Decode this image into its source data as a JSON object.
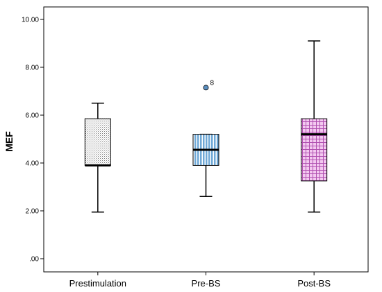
{
  "chart_data": {
    "type": "boxplot",
    "ylabel": "MEF",
    "xlabel": "",
    "title": "",
    "ylim": [
      0,
      10.5
    ],
    "yticks": [
      0,
      2,
      4,
      6,
      8,
      10
    ],
    "ytick_labels": [
      ".00",
      "2.00",
      "4.00",
      "6.00",
      "8.00",
      "10.00"
    ],
    "grid": false,
    "categories": [
      "Prestimulation",
      "Pre-BS",
      "Post-BS"
    ],
    "boxes": [
      {
        "category": "Prestimulation",
        "min": 1.95,
        "q1": 3.9,
        "median": 3.9,
        "q3": 5.85,
        "max": 6.5,
        "pattern": "dots",
        "fill": "#ffffff",
        "pattern_color": "#7a7a7a"
      },
      {
        "category": "Pre-BS",
        "min": 2.6,
        "q1": 3.9,
        "median": 4.55,
        "q3": 5.2,
        "max": 5.2,
        "pattern": "vertical-lines",
        "fill": "#ffffff",
        "pattern_color": "#6fa8d6",
        "outliers": [
          {
            "value": 7.15,
            "label": "8"
          }
        ]
      },
      {
        "category": "Post-BS",
        "min": 1.95,
        "q1": 3.25,
        "median": 5.2,
        "q3": 5.85,
        "max": 9.1,
        "pattern": "grid",
        "fill": "#f3c9f0",
        "pattern_color": "#b04fb0"
      }
    ],
    "outlier_color": "#5b8fc0"
  }
}
